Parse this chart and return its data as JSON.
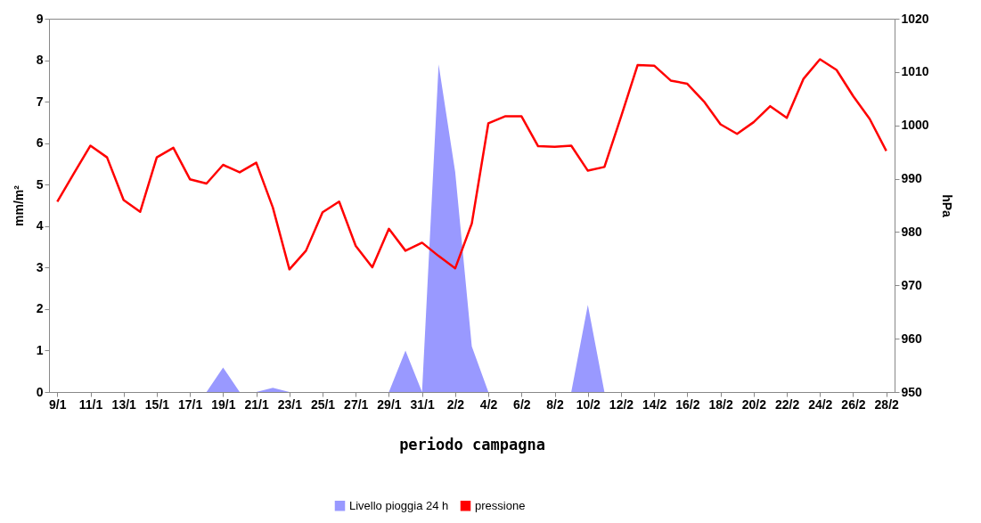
{
  "chart_data": {
    "type": "area",
    "xlabel": "periodo campagna",
    "ylabel": "mm/m²",
    "y2label": "hPa",
    "categories": [
      "9/1",
      null,
      "11/1",
      null,
      "13/1",
      null,
      "15/1",
      null,
      "17/1",
      null,
      "19/1",
      null,
      "21/1",
      null,
      "23/1",
      null,
      "25/1",
      null,
      "27/1",
      null,
      "29/1",
      null,
      "31/1",
      null,
      "2/2",
      null,
      "4/2",
      null,
      "6/2",
      null,
      "8/2",
      null,
      "10/2",
      null,
      "12/2",
      null,
      "14/2",
      null,
      "16/2",
      null,
      "18/2",
      null,
      "20/2",
      null,
      "22/2",
      null,
      "24/2",
      null,
      "26/2",
      null,
      "28/2"
    ],
    "series": [
      {
        "name": "Livello pioggia 24 h",
        "color": "#9999ff",
        "values": [
          0,
          0,
          0,
          0,
          0,
          0,
          0,
          0,
          0,
          0,
          0.59,
          0,
          0,
          0.1,
          0,
          0,
          0,
          0,
          0,
          0,
          0,
          1.0,
          0,
          7.9,
          5.3,
          1.1,
          0,
          0,
          0,
          0,
          0,
          0,
          2.1,
          0,
          0,
          0,
          0,
          0,
          0,
          0,
          0,
          0,
          0,
          0,
          0,
          0,
          0,
          0,
          0,
          0,
          0
        ]
      },
      {
        "name": "pressione",
        "type": "line",
        "axis": "y2",
        "color": "#ff0000",
        "values": [
          985.7,
          991.0,
          996.2,
          994.0,
          986.0,
          983.8,
          994.0,
          995.8,
          989.9,
          989.1,
          992.6,
          991.2,
          993.0,
          984.6,
          973.0,
          976.5,
          983.7,
          985.7,
          977.4,
          973.4,
          980.6,
          976.5,
          978.0,
          975.5,
          973.2,
          981.6,
          1000.4,
          1001.7,
          1001.7,
          996.1,
          996.0,
          996.2,
          991.5,
          992.2,
          1001.6,
          1011.3,
          1011.2,
          1008.4,
          1007.8,
          1004.5,
          1000.2,
          998.4,
          1000.6,
          1003.6,
          1001.4,
          1008.7,
          1012.4,
          1010.4,
          1005.5,
          1001.2,
          995.2
        ]
      }
    ],
    "ylim": [
      0,
      9
    ],
    "yticks": [
      0,
      1,
      2,
      3,
      4,
      5,
      6,
      7,
      8,
      9
    ],
    "y2lim": [
      950,
      1020
    ],
    "y2ticks": [
      950,
      960,
      970,
      980,
      990,
      1000,
      1010,
      1020
    ],
    "legend": "bottom"
  }
}
